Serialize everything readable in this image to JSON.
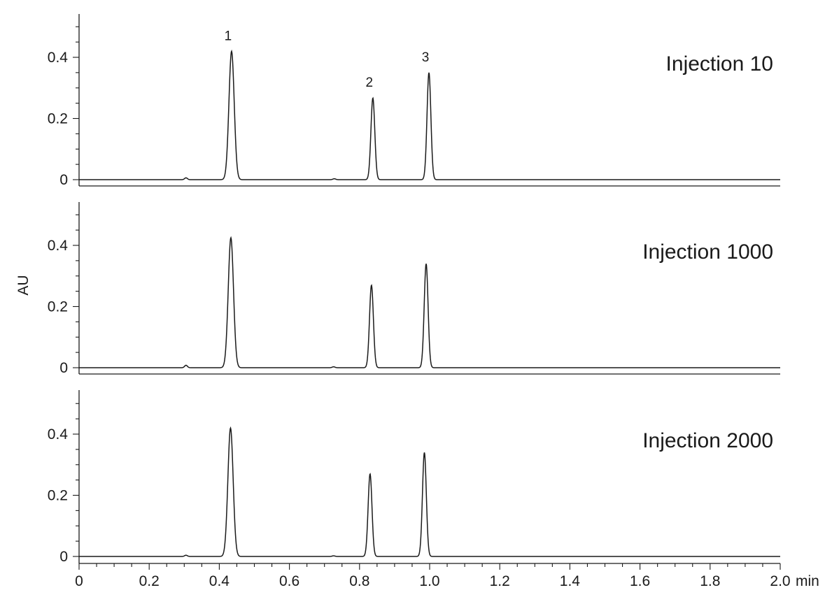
{
  "chart_data": {
    "type": "line",
    "ylabel": "AU",
    "xunit": "min",
    "xlim": [
      0,
      2.0
    ],
    "ylim": [
      0,
      0.55
    ],
    "x_ticks": [
      0,
      0.2,
      0.4,
      0.6,
      0.8,
      1.0,
      1.2,
      1.4,
      1.6,
      1.8,
      2.0
    ],
    "x_tick_labels": [
      "0",
      "0.2",
      "0.4",
      "0.6",
      "0.8",
      "1.0",
      "1.2",
      "1.4",
      "1.6",
      "1.8",
      "2.0"
    ],
    "y_ticks": [
      0,
      0.2,
      0.4
    ],
    "y_tick_labels": [
      "0",
      "0.2",
      "0.4"
    ],
    "grid": false,
    "panels": [
      {
        "label": "Injection 10",
        "peaks": [
          {
            "id": "1",
            "rt": 0.435,
            "height": 0.42,
            "sigma": 0.0075
          },
          {
            "id": "2",
            "rt": 0.838,
            "height": 0.267,
            "sigma": 0.0055
          },
          {
            "id": "3",
            "rt": 0.998,
            "height": 0.35,
            "sigma": 0.0055
          }
        ],
        "minor_peaks": [
          {
            "rt": 0.305,
            "height": 0.006,
            "sigma": 0.004
          },
          {
            "rt": 0.728,
            "height": 0.003,
            "sigma": 0.004
          }
        ],
        "show_peak_labels": true
      },
      {
        "label": "Injection 1000",
        "peaks": [
          {
            "id": "1",
            "rt": 0.433,
            "height": 0.425,
            "sigma": 0.0075
          },
          {
            "id": "2",
            "rt": 0.834,
            "height": 0.27,
            "sigma": 0.0055
          },
          {
            "id": "3",
            "rt": 0.99,
            "height": 0.34,
            "sigma": 0.0055
          }
        ],
        "minor_peaks": [
          {
            "rt": 0.305,
            "height": 0.008,
            "sigma": 0.004
          },
          {
            "rt": 0.726,
            "height": 0.003,
            "sigma": 0.004
          }
        ],
        "show_peak_labels": false
      },
      {
        "label": "Injection 2000",
        "peaks": [
          {
            "id": "1",
            "rt": 0.432,
            "height": 0.42,
            "sigma": 0.0075
          },
          {
            "id": "2",
            "rt": 0.83,
            "height": 0.27,
            "sigma": 0.0055
          },
          {
            "id": "3",
            "rt": 0.985,
            "height": 0.34,
            "sigma": 0.0055
          }
        ],
        "minor_peaks": [
          {
            "rt": 0.305,
            "height": 0.004,
            "sigma": 0.004
          },
          {
            "rt": 0.726,
            "height": 0.002,
            "sigma": 0.004
          }
        ],
        "show_peak_labels": false
      }
    ]
  },
  "colors": {
    "trace": "#1a1a1a",
    "axis": "#1a1a1a",
    "background": "#ffffff"
  }
}
